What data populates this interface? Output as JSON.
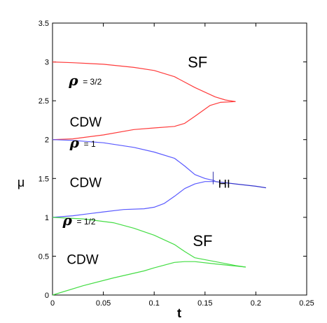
{
  "chart_data": {
    "type": "line",
    "xlabel": "t",
    "ylabel": "μ",
    "xlim": [
      0,
      0.25
    ],
    "ylim": [
      0,
      3.5
    ],
    "xticks": [
      0,
      0.05,
      0.1,
      0.15,
      0.2,
      0.25
    ],
    "yticks": [
      0,
      0.5,
      1,
      1.5,
      2,
      2.5,
      3,
      3.5
    ],
    "xtick_labels": [
      "0",
      "0.05",
      "0.1",
      "0.15",
      "0.2",
      "0.25"
    ],
    "ytick_labels": [
      "0",
      "0.5",
      "1",
      "1.5",
      "2",
      "2.5",
      "3",
      "3.5"
    ],
    "grid": false,
    "series": [
      {
        "color": "#ff3b3b",
        "x": [
          0,
          0.02,
          0.05,
          0.08,
          0.1,
          0.12,
          0.14,
          0.16,
          0.17,
          0.18
        ],
        "y": [
          3.0,
          2.99,
          2.97,
          2.93,
          2.89,
          2.81,
          2.67,
          2.55,
          2.51,
          2.49
        ]
      },
      {
        "color": "#ff3b3b",
        "x": [
          0,
          0.02,
          0.05,
          0.08,
          0.1,
          0.12,
          0.13,
          0.14,
          0.155,
          0.165,
          0.18
        ],
        "y": [
          2.0,
          2.01,
          2.06,
          2.13,
          2.15,
          2.17,
          2.21,
          2.3,
          2.44,
          2.48,
          2.49
        ]
      },
      {
        "color": "#5a5aff",
        "x": [
          0,
          0.02,
          0.05,
          0.08,
          0.1,
          0.12,
          0.13,
          0.14,
          0.15,
          0.16
        ],
        "y": [
          2.0,
          1.99,
          1.96,
          1.9,
          1.84,
          1.76,
          1.66,
          1.55,
          1.5,
          1.47
        ]
      },
      {
        "color": "#5a5aff",
        "x": [
          0,
          0.02,
          0.05,
          0.07,
          0.09,
          0.1,
          0.11,
          0.12,
          0.13,
          0.14,
          0.15,
          0.16
        ],
        "y": [
          1.0,
          1.02,
          1.07,
          1.1,
          1.11,
          1.13,
          1.18,
          1.27,
          1.37,
          1.43,
          1.46,
          1.46
        ]
      },
      {
        "color": "#3333cc",
        "x": [
          0.16,
          0.18,
          0.2,
          0.21
        ],
        "y": [
          1.46,
          1.43,
          1.4,
          1.38
        ]
      },
      {
        "color": "#44dd44",
        "x": [
          0,
          0.03,
          0.06,
          0.08,
          0.1,
          0.12,
          0.13,
          0.14,
          0.16,
          0.18,
          0.19
        ],
        "y": [
          1.0,
          0.98,
          0.93,
          0.86,
          0.77,
          0.65,
          0.56,
          0.48,
          0.43,
          0.38,
          0.36
        ]
      },
      {
        "color": "#44dd44",
        "x": [
          0,
          0.03,
          0.06,
          0.09,
          0.1,
          0.12,
          0.13,
          0.14,
          0.16,
          0.19
        ],
        "y": [
          0.0,
          0.12,
          0.22,
          0.31,
          0.35,
          0.42,
          0.43,
          0.43,
          0.4,
          0.36
        ]
      }
    ],
    "tick_mark": {
      "x": 0.158,
      "y": 1.47
    },
    "annotations": [
      {
        "text": "SF",
        "x": 0.133,
        "y": 2.93,
        "size": 22,
        "kind": "label"
      },
      {
        "text": "SF",
        "x": 0.138,
        "y": 0.63,
        "size": 22,
        "kind": "label"
      },
      {
        "text": "HI",
        "x": 0.163,
        "y": 1.38,
        "size": 17,
        "kind": "label"
      },
      {
        "text": "CDW",
        "x": 0.017,
        "y": 2.17,
        "size": 19,
        "kind": "label"
      },
      {
        "text": "CDW",
        "x": 0.017,
        "y": 1.39,
        "size": 19,
        "kind": "label"
      },
      {
        "text": "CDW",
        "x": 0.014,
        "y": 0.4,
        "size": 19,
        "kind": "label"
      }
    ],
    "densities": [
      {
        "symbol": "ρ",
        "value": "= 3/2",
        "x": 0.016,
        "y": 2.7
      },
      {
        "symbol": "ρ",
        "value": "= 1",
        "x": 0.017,
        "y": 1.9
      },
      {
        "symbol": "ρ",
        "value": "= 1/2",
        "x": 0.01,
        "y": 0.9
      }
    ]
  }
}
